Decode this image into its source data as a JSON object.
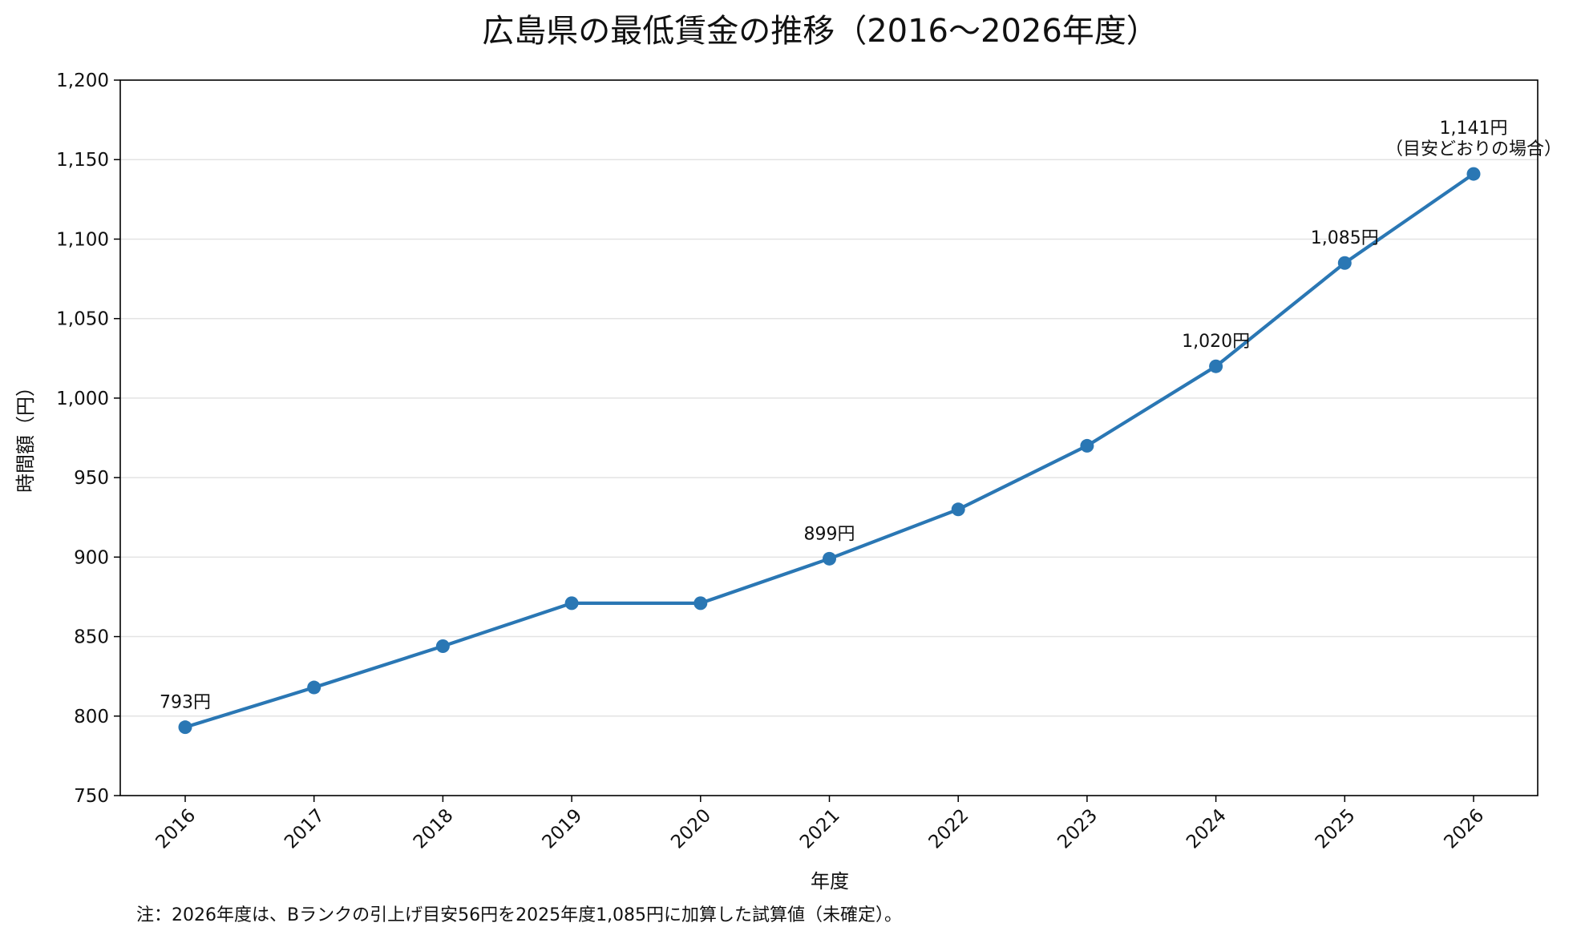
{
  "chart_data": {
    "type": "line",
    "title": "広島県の最低賃金の推移（2016〜2026年度）",
    "xlabel": "年度",
    "ylabel": "時間額（円）",
    "x": [
      "2016",
      "2017",
      "2018",
      "2019",
      "2020",
      "2021",
      "2022",
      "2023",
      "2024",
      "2025",
      "2026"
    ],
    "series": [
      {
        "values": [
          793,
          818,
          844,
          871,
          871,
          899,
          930,
          970,
          1020,
          1085,
          1141
        ],
        "color": "#2a77b4"
      }
    ],
    "ylim": [
      750,
      1200
    ],
    "yticks": [
      750,
      800,
      850,
      900,
      950,
      1000,
      1050,
      1100,
      1150,
      1200
    ],
    "ytick_labels": [
      "750",
      "800",
      "850",
      "900",
      "950",
      "1,000",
      "1,050",
      "1,100",
      "1,150",
      "1,200"
    ],
    "grid": "horizontal",
    "annotations": [
      {
        "x": "2016",
        "lines": [
          "793円"
        ]
      },
      {
        "x": "2021",
        "lines": [
          "899円"
        ]
      },
      {
        "x": "2024",
        "lines": [
          "1,020円"
        ]
      },
      {
        "x": "2025",
        "lines": [
          "1,085円"
        ]
      },
      {
        "x": "2026",
        "lines": [
          "1,141円",
          "（目安どおりの場合）"
        ]
      }
    ],
    "note": "注：2026年度は、Bランクの引上げ目安56円を2025年度1,085円に加算した試算値（未確定）。"
  }
}
